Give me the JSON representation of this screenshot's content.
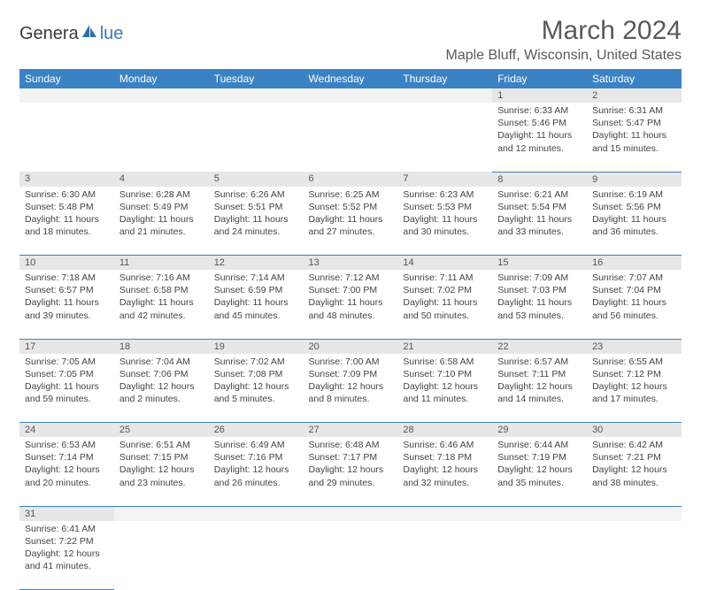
{
  "logo": {
    "textDark": "Genera",
    "textBlue": "lue"
  },
  "title": "March 2024",
  "location": "Maple Bluff, Wisconsin, United States",
  "colors": {
    "headerBg": "#3b82c4",
    "headerText": "#ffffff",
    "dayNumBg": "#e7e7e7",
    "rowDivider": "#3b82c4",
    "bodyText": "#444444",
    "titleText": "#5a5a5a"
  },
  "dayHeaders": [
    "Sunday",
    "Monday",
    "Tuesday",
    "Wednesday",
    "Thursday",
    "Friday",
    "Saturday"
  ],
  "weeks": [
    [
      null,
      null,
      null,
      null,
      null,
      {
        "n": "1",
        "sr": "Sunrise: 6:33 AM",
        "ss": "Sunset: 5:46 PM",
        "dl": "Daylight: 11 hours and 12 minutes."
      },
      {
        "n": "2",
        "sr": "Sunrise: 6:31 AM",
        "ss": "Sunset: 5:47 PM",
        "dl": "Daylight: 11 hours and 15 minutes."
      }
    ],
    [
      {
        "n": "3",
        "sr": "Sunrise: 6:30 AM",
        "ss": "Sunset: 5:48 PM",
        "dl": "Daylight: 11 hours and 18 minutes."
      },
      {
        "n": "4",
        "sr": "Sunrise: 6:28 AM",
        "ss": "Sunset: 5:49 PM",
        "dl": "Daylight: 11 hours and 21 minutes."
      },
      {
        "n": "5",
        "sr": "Sunrise: 6:26 AM",
        "ss": "Sunset: 5:51 PM",
        "dl": "Daylight: 11 hours and 24 minutes."
      },
      {
        "n": "6",
        "sr": "Sunrise: 6:25 AM",
        "ss": "Sunset: 5:52 PM",
        "dl": "Daylight: 11 hours and 27 minutes."
      },
      {
        "n": "7",
        "sr": "Sunrise: 6:23 AM",
        "ss": "Sunset: 5:53 PM",
        "dl": "Daylight: 11 hours and 30 minutes."
      },
      {
        "n": "8",
        "sr": "Sunrise: 6:21 AM",
        "ss": "Sunset: 5:54 PM",
        "dl": "Daylight: 11 hours and 33 minutes."
      },
      {
        "n": "9",
        "sr": "Sunrise: 6:19 AM",
        "ss": "Sunset: 5:56 PM",
        "dl": "Daylight: 11 hours and 36 minutes."
      }
    ],
    [
      {
        "n": "10",
        "sr": "Sunrise: 7:18 AM",
        "ss": "Sunset: 6:57 PM",
        "dl": "Daylight: 11 hours and 39 minutes."
      },
      {
        "n": "11",
        "sr": "Sunrise: 7:16 AM",
        "ss": "Sunset: 6:58 PM",
        "dl": "Daylight: 11 hours and 42 minutes."
      },
      {
        "n": "12",
        "sr": "Sunrise: 7:14 AM",
        "ss": "Sunset: 6:59 PM",
        "dl": "Daylight: 11 hours and 45 minutes."
      },
      {
        "n": "13",
        "sr": "Sunrise: 7:12 AM",
        "ss": "Sunset: 7:00 PM",
        "dl": "Daylight: 11 hours and 48 minutes."
      },
      {
        "n": "14",
        "sr": "Sunrise: 7:11 AM",
        "ss": "Sunset: 7:02 PM",
        "dl": "Daylight: 11 hours and 50 minutes."
      },
      {
        "n": "15",
        "sr": "Sunrise: 7:09 AM",
        "ss": "Sunset: 7:03 PM",
        "dl": "Daylight: 11 hours and 53 minutes."
      },
      {
        "n": "16",
        "sr": "Sunrise: 7:07 AM",
        "ss": "Sunset: 7:04 PM",
        "dl": "Daylight: 11 hours and 56 minutes."
      }
    ],
    [
      {
        "n": "17",
        "sr": "Sunrise: 7:05 AM",
        "ss": "Sunset: 7:05 PM",
        "dl": "Daylight: 11 hours and 59 minutes."
      },
      {
        "n": "18",
        "sr": "Sunrise: 7:04 AM",
        "ss": "Sunset: 7:06 PM",
        "dl": "Daylight: 12 hours and 2 minutes."
      },
      {
        "n": "19",
        "sr": "Sunrise: 7:02 AM",
        "ss": "Sunset: 7:08 PM",
        "dl": "Daylight: 12 hours and 5 minutes."
      },
      {
        "n": "20",
        "sr": "Sunrise: 7:00 AM",
        "ss": "Sunset: 7:09 PM",
        "dl": "Daylight: 12 hours and 8 minutes."
      },
      {
        "n": "21",
        "sr": "Sunrise: 6:58 AM",
        "ss": "Sunset: 7:10 PM",
        "dl": "Daylight: 12 hours and 11 minutes."
      },
      {
        "n": "22",
        "sr": "Sunrise: 6:57 AM",
        "ss": "Sunset: 7:11 PM",
        "dl": "Daylight: 12 hours and 14 minutes."
      },
      {
        "n": "23",
        "sr": "Sunrise: 6:55 AM",
        "ss": "Sunset: 7:12 PM",
        "dl": "Daylight: 12 hours and 17 minutes."
      }
    ],
    [
      {
        "n": "24",
        "sr": "Sunrise: 6:53 AM",
        "ss": "Sunset: 7:14 PM",
        "dl": "Daylight: 12 hours and 20 minutes."
      },
      {
        "n": "25",
        "sr": "Sunrise: 6:51 AM",
        "ss": "Sunset: 7:15 PM",
        "dl": "Daylight: 12 hours and 23 minutes."
      },
      {
        "n": "26",
        "sr": "Sunrise: 6:49 AM",
        "ss": "Sunset: 7:16 PM",
        "dl": "Daylight: 12 hours and 26 minutes."
      },
      {
        "n": "27",
        "sr": "Sunrise: 6:48 AM",
        "ss": "Sunset: 7:17 PM",
        "dl": "Daylight: 12 hours and 29 minutes."
      },
      {
        "n": "28",
        "sr": "Sunrise: 6:46 AM",
        "ss": "Sunset: 7:18 PM",
        "dl": "Daylight: 12 hours and 32 minutes."
      },
      {
        "n": "29",
        "sr": "Sunrise: 6:44 AM",
        "ss": "Sunset: 7:19 PM",
        "dl": "Daylight: 12 hours and 35 minutes."
      },
      {
        "n": "30",
        "sr": "Sunrise: 6:42 AM",
        "ss": "Sunset: 7:21 PM",
        "dl": "Daylight: 12 hours and 38 minutes."
      }
    ],
    [
      {
        "n": "31",
        "sr": "Sunrise: 6:41 AM",
        "ss": "Sunset: 7:22 PM",
        "dl": "Daylight: 12 hours and 41 minutes."
      },
      null,
      null,
      null,
      null,
      null,
      null
    ]
  ]
}
